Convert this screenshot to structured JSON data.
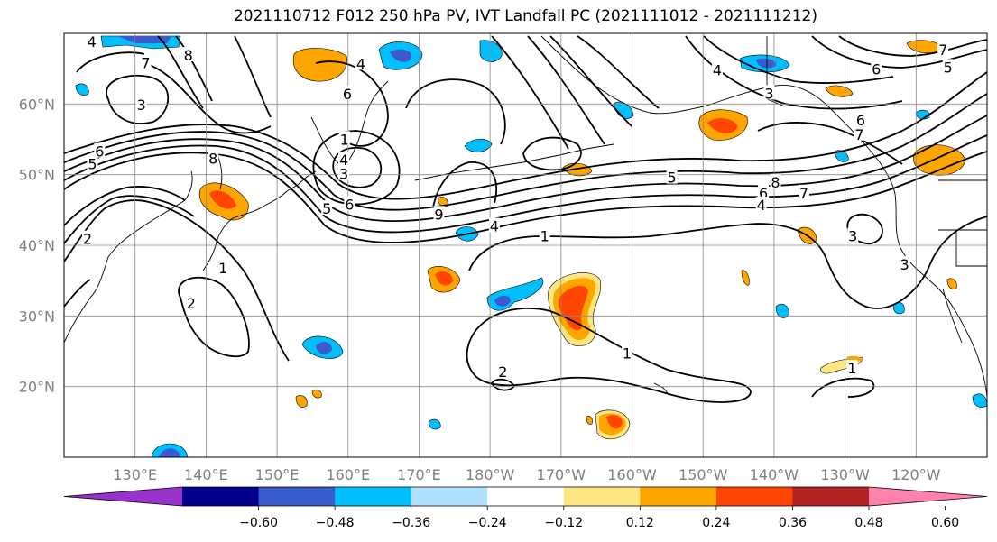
{
  "title": "2021110712 F012 250 hPa PV, IVT Landfall PC (2021111012 - 2021111212)",
  "map": {
    "lat_range": [
      10,
      70
    ],
    "lon_range_east": [
      120,
      250
    ],
    "lat_ticks": [
      {
        "value": 20,
        "label": "20°N"
      },
      {
        "value": 30,
        "label": "30°N"
      },
      {
        "value": 40,
        "label": "40°N"
      },
      {
        "value": 50,
        "label": "50°N"
      },
      {
        "value": 60,
        "label": "60°N"
      }
    ],
    "lon_ticks": [
      {
        "value": 130,
        "label": "130°E"
      },
      {
        "value": 140,
        "label": "140°E"
      },
      {
        "value": 150,
        "label": "150°E"
      },
      {
        "value": 160,
        "label": "160°E"
      },
      {
        "value": 170,
        "label": "170°E"
      },
      {
        "value": 180,
        "label": "180°W"
      },
      {
        "value": 190,
        "label": "170°W"
      },
      {
        "value": 200,
        "label": "160°W"
      },
      {
        "value": 210,
        "label": "150°W"
      },
      {
        "value": 220,
        "label": "140°W"
      },
      {
        "value": 230,
        "label": "130°W"
      },
      {
        "value": 240,
        "label": "120°W"
      }
    ],
    "grid": true
  },
  "colorbar": {
    "bounds": [
      -0.6,
      -0.48,
      -0.36,
      -0.24,
      -0.12,
      0.12,
      0.24,
      0.36,
      0.48,
      0.6
    ],
    "tick_labels": [
      "−0.60",
      "−0.48",
      "−0.36",
      "−0.24",
      "−0.12",
      "0.12",
      "0.24",
      "0.36",
      "0.48",
      "0.60"
    ],
    "colors": [
      "#9932cc",
      "#00008b",
      "#3a5bcd",
      "#00bfff",
      "#b0e2ff",
      "#ffffff",
      "#ffe680",
      "#ffa500",
      "#ff4500",
      "#b22222",
      "#ff82ab"
    ],
    "extend": "both"
  },
  "contour_labels": [
    {
      "text": "4",
      "lat": 68.7,
      "lon": 123.9
    },
    {
      "text": "7",
      "lat": 65.7,
      "lon": 131.5
    },
    {
      "text": "8",
      "lat": 66.8,
      "lon": 137.5
    },
    {
      "text": "3",
      "lat": 59.8,
      "lon": 130.9
    },
    {
      "text": "6",
      "lat": 53.2,
      "lon": 125.0
    },
    {
      "text": "5",
      "lat": 51.4,
      "lon": 124.0
    },
    {
      "text": "8",
      "lat": 52.2,
      "lon": 141.0
    },
    {
      "text": "6",
      "lat": 61.3,
      "lon": 159.9
    },
    {
      "text": "4",
      "lat": 65.6,
      "lon": 161.8
    },
    {
      "text": "4",
      "lat": 52.0,
      "lon": 159.4
    },
    {
      "text": "3",
      "lat": 50.0,
      "lon": 159.4
    },
    {
      "text": "5",
      "lat": 45.1,
      "lon": 157.0
    },
    {
      "text": "6",
      "lat": 45.7,
      "lon": 160.2
    },
    {
      "text": "9",
      "lat": 44.3,
      "lon": 172.8
    },
    {
      "text": "4",
      "lat": 42.6,
      "lon": 180.6
    },
    {
      "text": "1",
      "lat": 41.2,
      "lon": 187.7
    },
    {
      "text": "5",
      "lat": 49.5,
      "lon": 205.6
    },
    {
      "text": "8",
      "lat": 48.8,
      "lon": 220.2
    },
    {
      "text": "6",
      "lat": 47.3,
      "lon": 218.5
    },
    {
      "text": "7",
      "lat": 47.3,
      "lon": 224.2
    },
    {
      "text": "4",
      "lat": 45.6,
      "lon": 218.2
    },
    {
      "text": "4",
      "lat": 64.7,
      "lon": 212.0
    },
    {
      "text": "3",
      "lat": 61.4,
      "lon": 219.3
    },
    {
      "text": "6",
      "lat": 57.6,
      "lon": 232.2
    },
    {
      "text": "7",
      "lat": 55.6,
      "lon": 232.0
    },
    {
      "text": "6",
      "lat": 64.8,
      "lon": 234.4
    },
    {
      "text": "5",
      "lat": 65.1,
      "lon": 244.5
    },
    {
      "text": "7",
      "lat": 67.6,
      "lon": 243.8
    },
    {
      "text": "3",
      "lat": 41.2,
      "lon": 231.1
    },
    {
      "text": "1",
      "lat": 22.5,
      "lon": 231.0
    },
    {
      "text": "1",
      "lat": 36.7,
      "lon": 142.4
    },
    {
      "text": "2",
      "lat": 31.7,
      "lon": 137.9
    },
    {
      "text": "2",
      "lat": 22.0,
      "lon": 181.8
    },
    {
      "text": "1",
      "lat": 24.6,
      "lon": 199.3
    },
    {
      "text": "2",
      "lat": 40.8,
      "lon": 123.3
    },
    {
      "text": "3",
      "lat": 37.2,
      "lon": 238.4
    },
    {
      "text": "1",
      "lat": 54.9,
      "lon": 159.5
    }
  ]
}
